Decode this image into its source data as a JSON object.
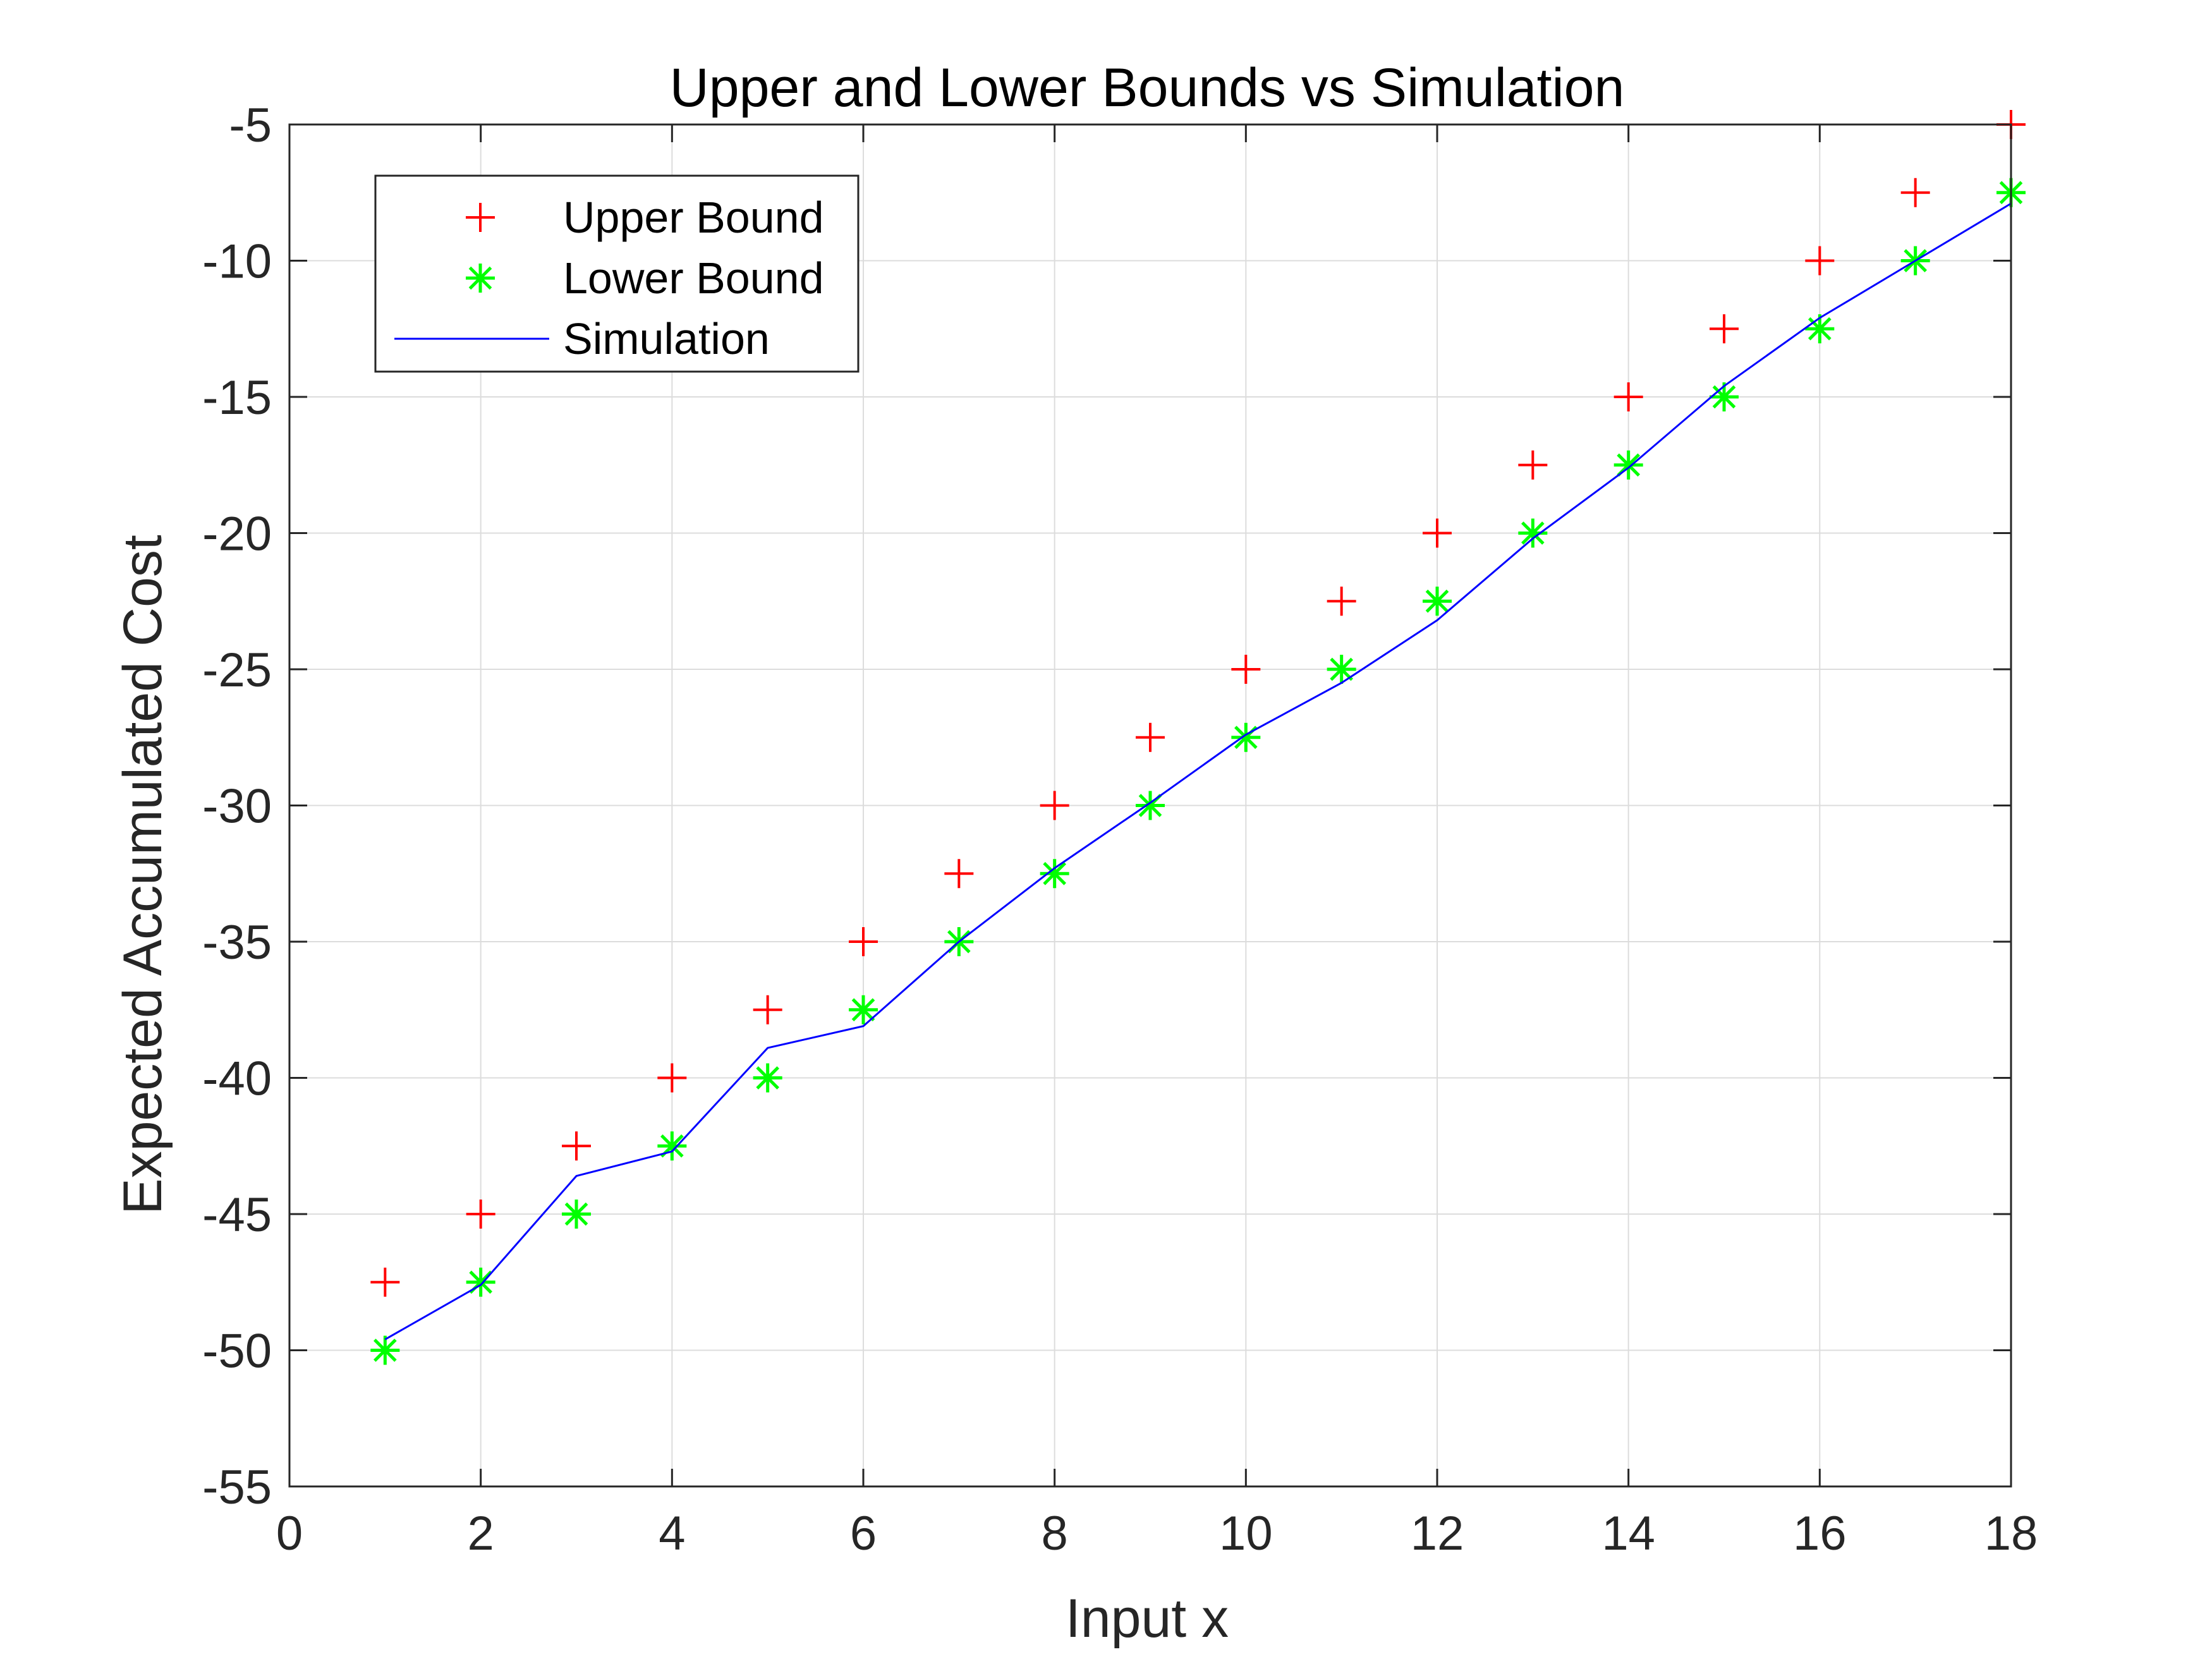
{
  "chart_data": {
    "type": "scatter",
    "title": "Upper and Lower Bounds vs Simulation",
    "xlabel": "Input x",
    "ylabel": "Expected Accumulated Cost",
    "xlim": [
      0,
      18
    ],
    "ylim": [
      -55,
      -5
    ],
    "xticks": [
      0,
      2,
      4,
      6,
      8,
      10,
      12,
      14,
      16,
      18
    ],
    "yticks": [
      -5,
      -10,
      -15,
      -20,
      -25,
      -30,
      -35,
      -40,
      -45,
      -50,
      -55
    ],
    "grid": true,
    "legend_position": "top-left",
    "series": [
      {
        "name": "Upper Bound",
        "marker": "plus",
        "color": "#ff0000",
        "x": [
          1,
          2,
          3,
          4,
          5,
          6,
          7,
          8,
          9,
          10,
          11,
          12,
          13,
          14,
          15,
          16,
          17,
          18
        ],
        "y": [
          -47.5,
          -45,
          -42.5,
          -40,
          -37.5,
          -35,
          -32.5,
          -30,
          -27.5,
          -25,
          -22.5,
          -20,
          -17.5,
          -15,
          -12.5,
          -10,
          -7.5,
          -5
        ]
      },
      {
        "name": "Lower Bound",
        "marker": "asterisk",
        "color": "#00ff00",
        "x": [
          1,
          2,
          3,
          4,
          5,
          6,
          7,
          8,
          9,
          10,
          11,
          12,
          13,
          14,
          15,
          16,
          17,
          18
        ],
        "y": [
          -50,
          -47.5,
          -45,
          -42.5,
          -40,
          -37.5,
          -35,
          -32.5,
          -30,
          -27.5,
          -25,
          -22.5,
          -20,
          -17.5,
          -15,
          -12.5,
          -10,
          -7.5
        ]
      },
      {
        "name": "Simulation",
        "marker": "line",
        "color": "#0000ff",
        "x": [
          1,
          2,
          3,
          4,
          5,
          6,
          7,
          8,
          9,
          10,
          11,
          12,
          13,
          14,
          15,
          16,
          17,
          18
        ],
        "y": [
          -49.6,
          -47.6,
          -43.6,
          -42.7,
          -38.9,
          -38.1,
          -35.0,
          -32.3,
          -29.9,
          -27.4,
          -25.5,
          -23.2,
          -20.2,
          -17.6,
          -14.6,
          -12.1,
          -10.0,
          -7.9
        ]
      }
    ]
  }
}
